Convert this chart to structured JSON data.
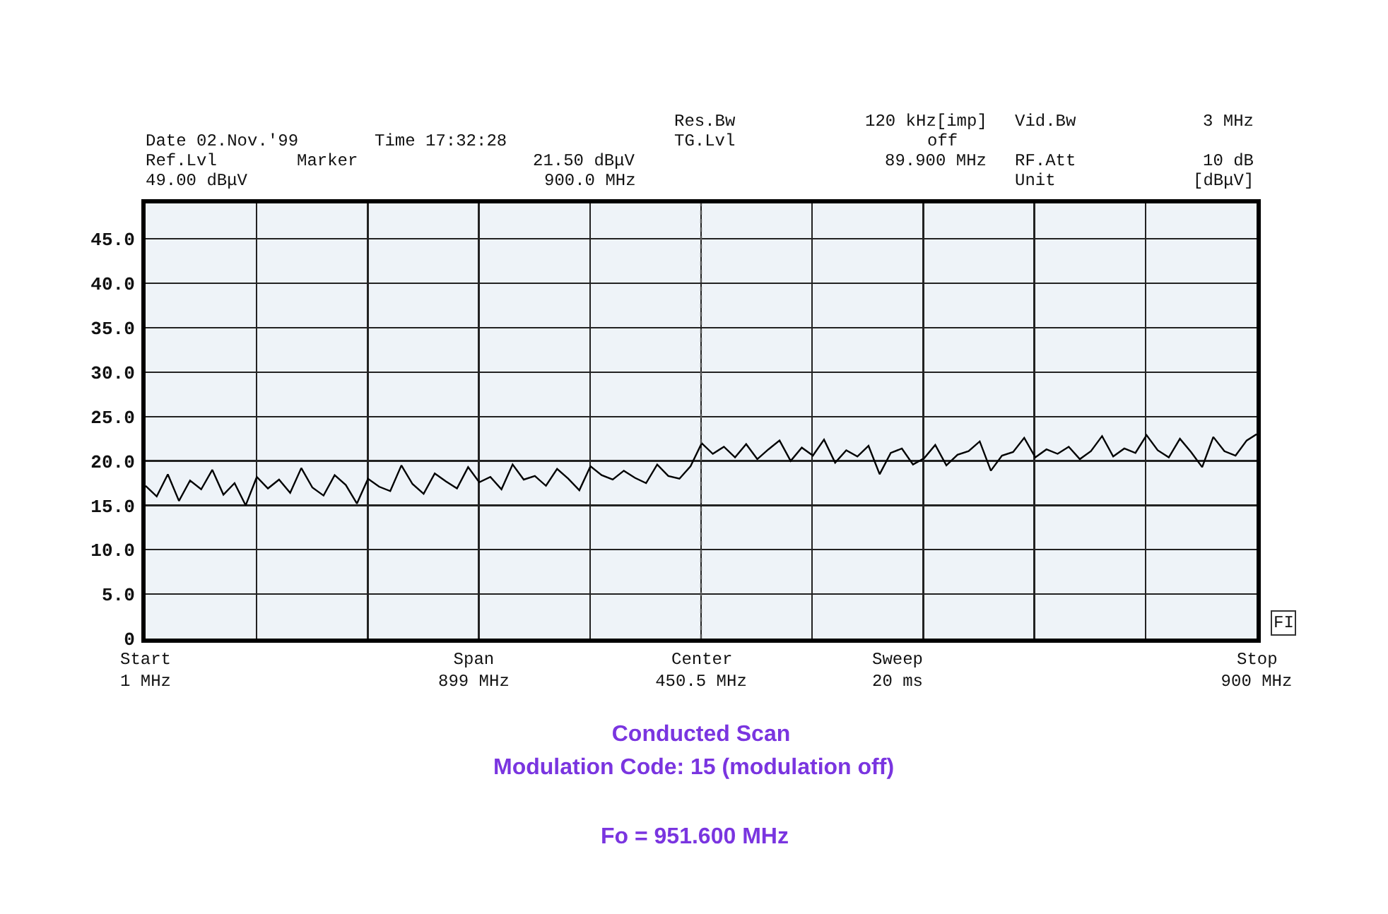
{
  "chart_data": {
    "type": "line",
    "title": "Conducted Scan",
    "subtitle": "Modulation Code: 15 (modulation off)",
    "annotations": [
      "Date 02.Nov.'99",
      "Time 17:32:28",
      "Ref.Lvl",
      "49.00 dBμV",
      "Marker",
      "21.50 dBμV",
      "900.0 MHz",
      "Res.Bw",
      "TG.Lvl",
      "120 kHz[imp]",
      "off",
      "89.900 MHz",
      "Vid.Bw",
      "RF.Att",
      "Unit",
      "3 MHz",
      "10 dB",
      "[dBμV]",
      "Span\n899 MHz",
      "Sweep\n20 ms",
      "Start",
      "Center",
      "Stop",
      "FI",
      "Fo = 951.600 MHz"
    ],
    "x": [
      1,
      10,
      19,
      28,
      37,
      46,
      55,
      64,
      73,
      82,
      91,
      100,
      109,
      118,
      127,
      136,
      145,
      154,
      163,
      172,
      181,
      190,
      199,
      208,
      217,
      226,
      235,
      244,
      253,
      262,
      271,
      280,
      289,
      298,
      307,
      316,
      325,
      334,
      343,
      352,
      361,
      370,
      379,
      388,
      397,
      406,
      415,
      424,
      433,
      442,
      451,
      460,
      469,
      478,
      487,
      496,
      505,
      514,
      523,
      532,
      541,
      550,
      559,
      568,
      577,
      586,
      595,
      604,
      613,
      622,
      631,
      640,
      649,
      658,
      667,
      676,
      685,
      694,
      703,
      712,
      721,
      730,
      739,
      748,
      757,
      766,
      775,
      784,
      793,
      802,
      811,
      820,
      829,
      838,
      847,
      856,
      865,
      874,
      883,
      892,
      900
    ],
    "series": [
      {
        "color": "#000000",
        "values": [
          17.2,
          16.0,
          18.5,
          15.5,
          17.8,
          16.8,
          19.0,
          16.2,
          17.5,
          15.0,
          18.2,
          16.9,
          17.9,
          16.4,
          19.2,
          17.0,
          16.1,
          18.4,
          17.3,
          15.2,
          18.0,
          17.1,
          16.6,
          19.5,
          17.4,
          16.3,
          18.6,
          17.7,
          16.9,
          19.3,
          17.6,
          18.2,
          16.8,
          19.6,
          17.9,
          18.3,
          17.2,
          19.1,
          18.0,
          16.7,
          19.4,
          18.4,
          17.9,
          18.9,
          18.1,
          17.5,
          19.6,
          18.3,
          18.0,
          19.4,
          22.0,
          20.8,
          21.6,
          20.4,
          21.9,
          20.2,
          21.3,
          22.3,
          20.0,
          21.5,
          20.6,
          22.4,
          19.8,
          21.2,
          20.5,
          21.7,
          18.5,
          20.9,
          21.4,
          19.6,
          20.3,
          21.8,
          19.5,
          20.7,
          21.1,
          22.2,
          18.9,
          20.6,
          21.0,
          22.6,
          20.4,
          21.3,
          20.8,
          21.6,
          20.2,
          21.1,
          22.8,
          20.5,
          21.4,
          20.9,
          22.9,
          21.2,
          20.4,
          22.5,
          21.0,
          19.3,
          22.7,
          21.1,
          20.6,
          22.3,
          23.0
        ]
      }
    ],
    "xlim": [
      1,
      900
    ],
    "xticks": [
      {
        "value": 1,
        "label": "1 MHz"
      },
      {
        "value": 90.9,
        "label": null
      },
      {
        "value": 180.8,
        "label": null
      },
      {
        "value": 270.7,
        "label": null
      },
      {
        "value": 360.6,
        "label": null
      },
      {
        "value": 450.5,
        "label": "450.5 MHz"
      },
      {
        "value": 540.4,
        "label": null
      },
      {
        "value": 630.3,
        "label": null
      },
      {
        "value": 720.2,
        "label": null
      },
      {
        "value": 810.1,
        "label": null
      },
      {
        "value": 900,
        "label": "900 MHz"
      }
    ],
    "ylim": [
      0,
      49
    ],
    "yticks": [
      {
        "value": 0,
        "label": "0"
      },
      {
        "value": 5,
        "label": "5.0"
      },
      {
        "value": 10,
        "label": "10.0"
      },
      {
        "value": 15,
        "label": "15.0"
      },
      {
        "value": 20,
        "label": "20.0"
      },
      {
        "value": 25,
        "label": "25.0"
      },
      {
        "value": 30,
        "label": "30.0"
      },
      {
        "value": 35,
        "label": "35.0"
      },
      {
        "value": 40,
        "label": "40.0"
      },
      {
        "value": 45,
        "label": "45.0"
      }
    ],
    "ref_lines": [
      {
        "axis": "x",
        "value": 450.5,
        "line_style": "dotted",
        "color": "#555555"
      }
    ],
    "grid": true,
    "marker": "none",
    "line_style": "solid"
  }
}
